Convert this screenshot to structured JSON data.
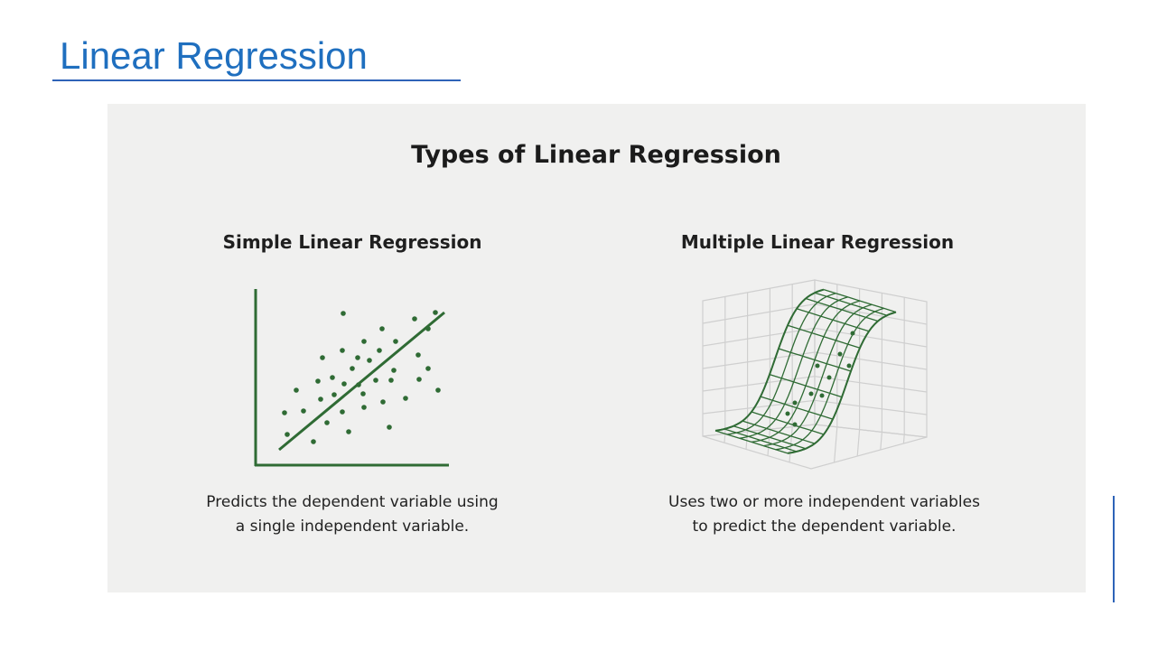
{
  "slide": {
    "title": "Linear Regression"
  },
  "figure": {
    "title": "Types of Linear Regression",
    "simple": {
      "title": "Simple Linear Regression",
      "caption_line1": "Predicts the dependent variable using",
      "caption_line2": "a single independent variable."
    },
    "multiple": {
      "title": "Multiple Linear Regression",
      "caption_line1": "Uses two or more independent variables",
      "caption_line2": "to predict the dependent variable."
    }
  },
  "colors": {
    "title_blue": "#1f6fbf",
    "rule_blue": "#2e63b8",
    "figure_bg": "#f0f0ef",
    "plot_green": "#2f6b34",
    "grid_gray": "#cfcfcf"
  }
}
